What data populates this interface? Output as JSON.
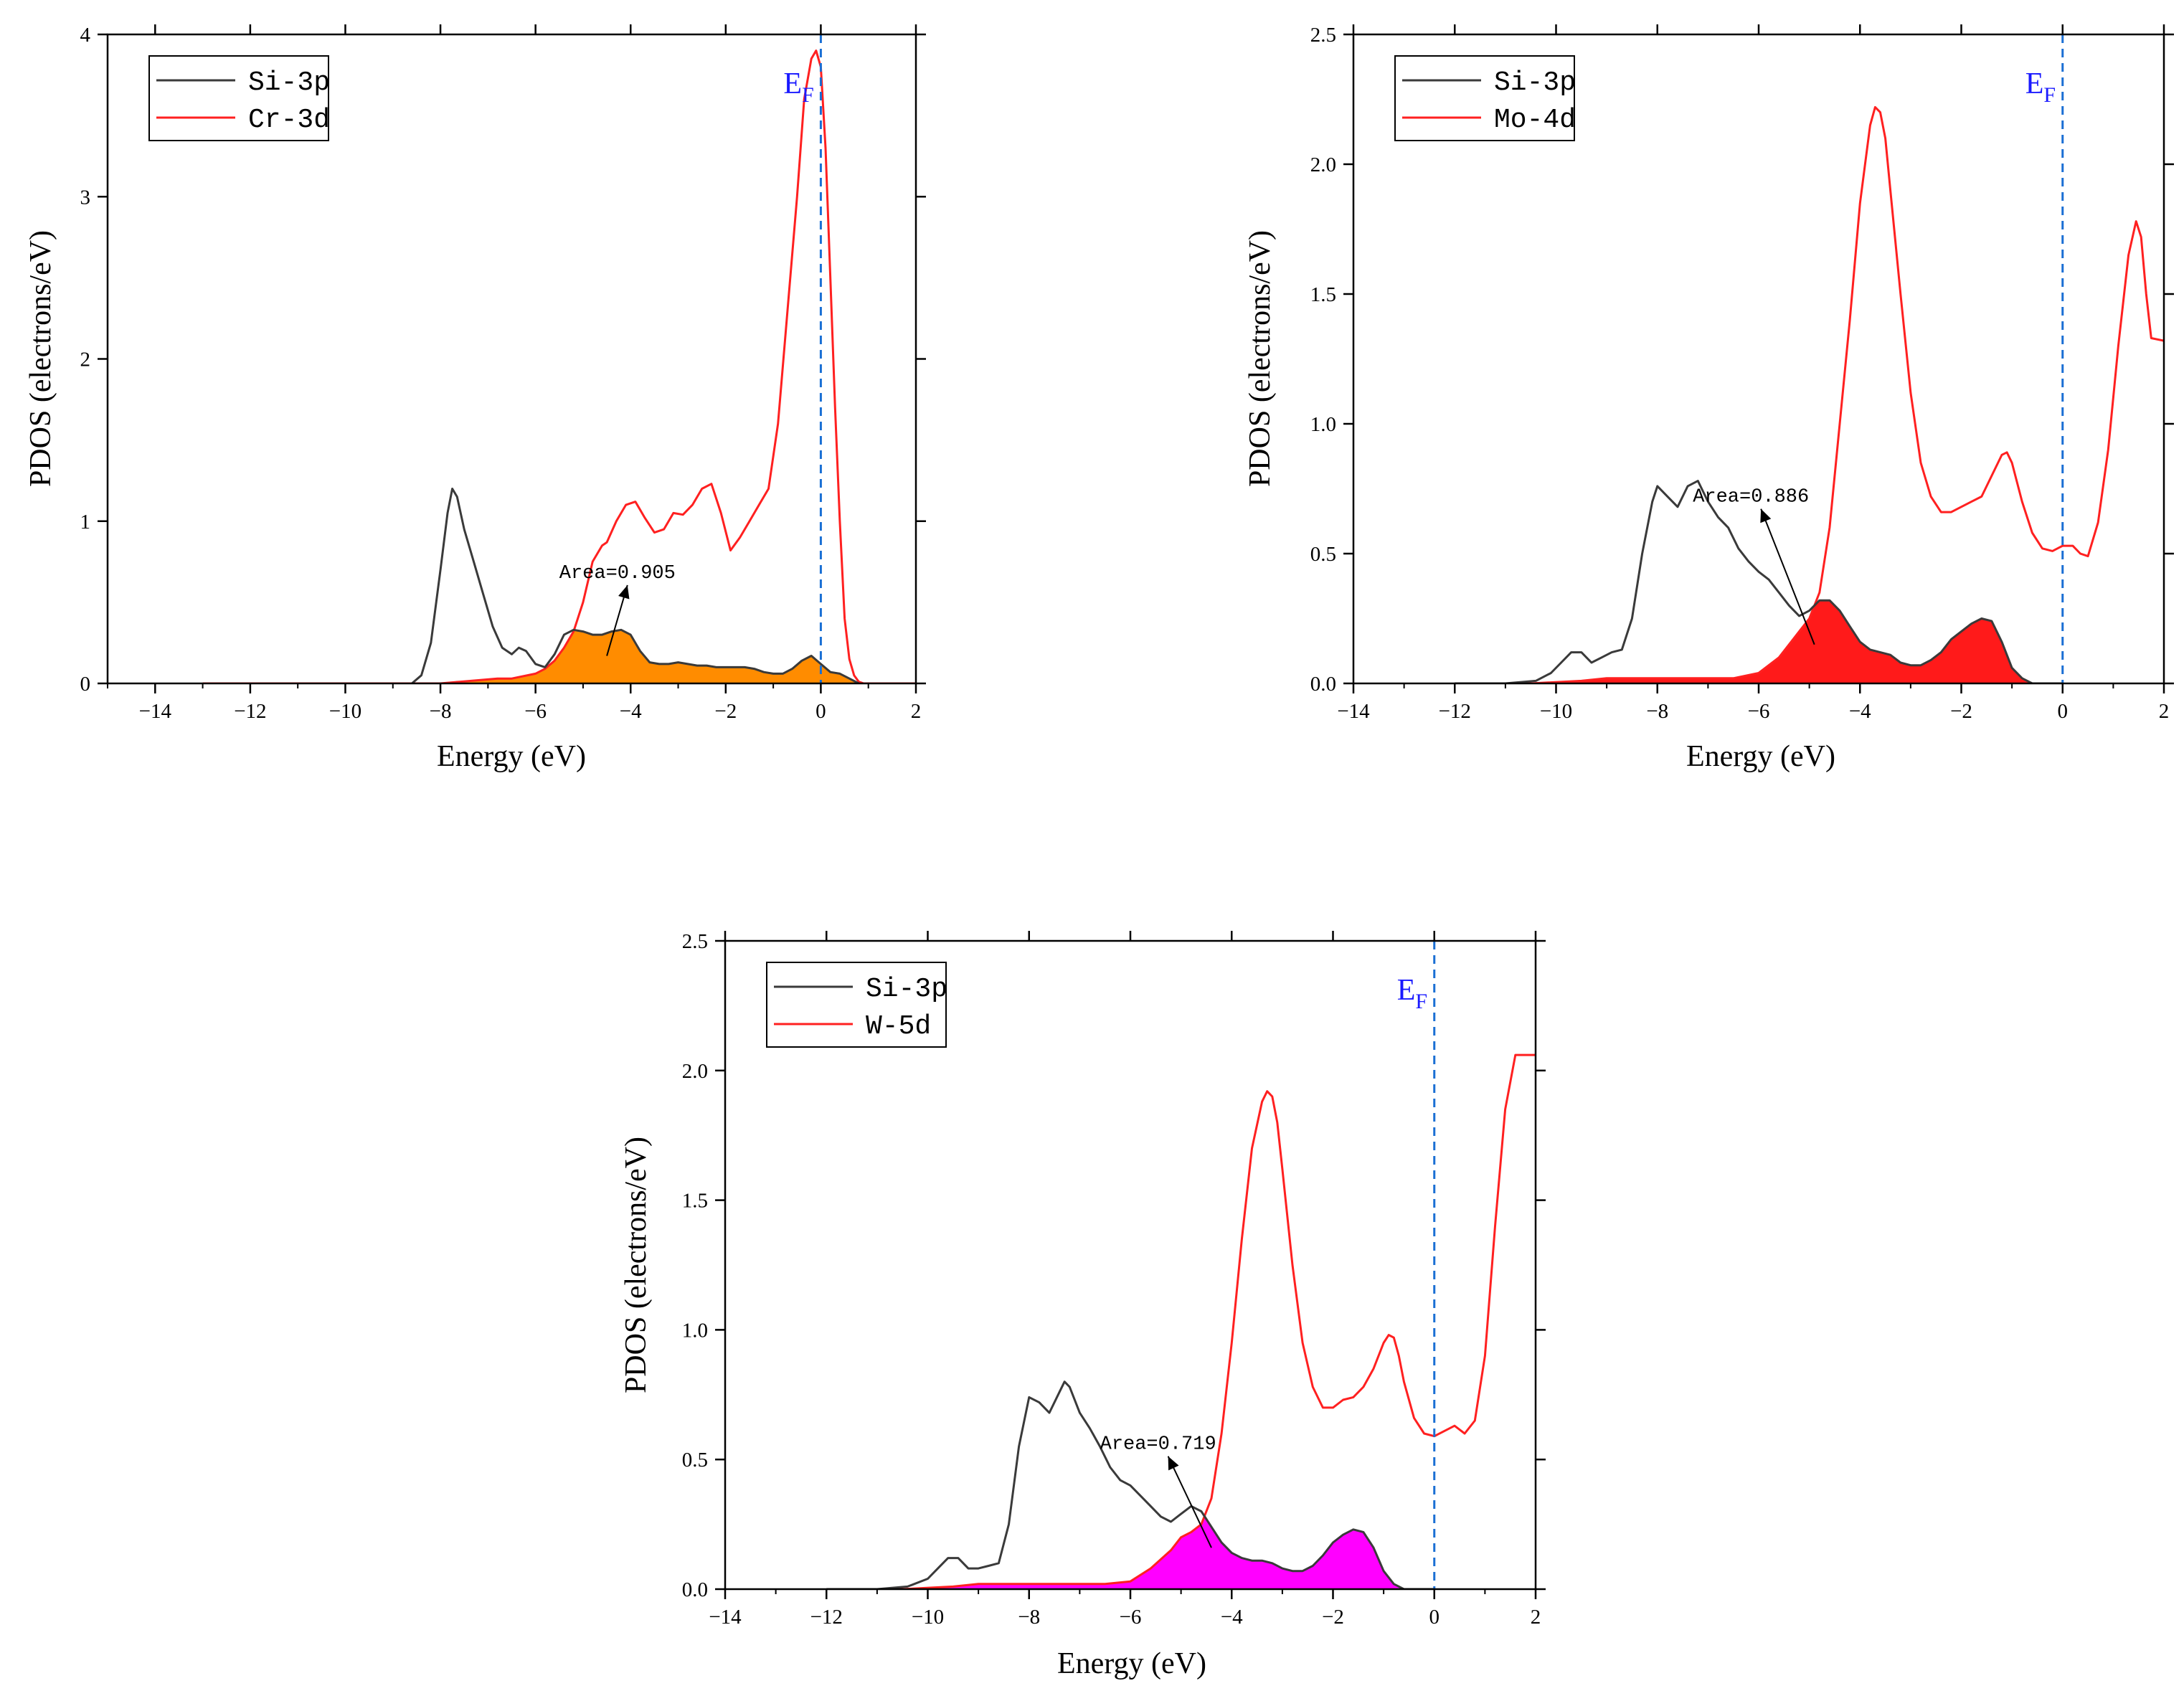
{
  "chart_data": [
    {
      "type": "line",
      "panel": "top-left",
      "xlabel": "Energy (eV)",
      "ylabel": "PDOS (electrons/eV)",
      "xlim": [
        -15,
        2
      ],
      "ylim": [
        0,
        4
      ],
      "xticks": [
        -14,
        -12,
        -10,
        -8,
        -6,
        -4,
        -2,
        0,
        2
      ],
      "yticks": [
        0,
        1,
        2,
        3,
        4
      ],
      "ytick_labels": [
        "0",
        "1",
        "2",
        "3",
        "4"
      ],
      "fermi_label_main": "E",
      "fermi_label_sub": "F",
      "fermi_level": 0,
      "legend_position": "top-left",
      "colors": {
        "si": "#3a3a3a",
        "metal": "#ff2020",
        "fill": "#ff8c00",
        "fermi": "#1a6fd4"
      },
      "annotation": "Area=0.905",
      "annotation_at": [
        -5.5,
        0.65
      ],
      "arrow_to": [
        -4.5,
        0.17
      ],
      "series": [
        {
          "name": "Si-3p",
          "x": [
            -8.6,
            -8.4,
            -8.2,
            -8.0,
            -7.85,
            -7.75,
            -7.65,
            -7.5,
            -7.3,
            -7.1,
            -6.9,
            -6.7,
            -6.5,
            -6.35,
            -6.2,
            -6.0,
            -5.8,
            -5.6,
            -5.4,
            -5.2,
            -5.0,
            -4.8,
            -4.6,
            -4.4,
            -4.2,
            -4.0,
            -3.8,
            -3.6,
            -3.4,
            -3.2,
            -3.0,
            -2.8,
            -2.6,
            -2.4,
            -2.2,
            -2.0,
            -1.8,
            -1.6,
            -1.4,
            -1.2,
            -1.0,
            -0.8,
            -0.6,
            -0.4,
            -0.2,
            0.0,
            0.2,
            0.4,
            0.6,
            0.8
          ],
          "y": [
            0.0,
            0.05,
            0.25,
            0.7,
            1.05,
            1.2,
            1.15,
            0.95,
            0.75,
            0.55,
            0.35,
            0.22,
            0.18,
            0.22,
            0.2,
            0.12,
            0.1,
            0.18,
            0.3,
            0.33,
            0.32,
            0.3,
            0.3,
            0.32,
            0.33,
            0.3,
            0.2,
            0.13,
            0.12,
            0.12,
            0.13,
            0.12,
            0.11,
            0.11,
            0.1,
            0.1,
            0.1,
            0.1,
            0.09,
            0.07,
            0.06,
            0.06,
            0.09,
            0.14,
            0.17,
            0.12,
            0.07,
            0.06,
            0.03,
            0.0
          ]
        },
        {
          "name": "Cr-3d",
          "x": [
            -13.0,
            -11.0,
            -9.0,
            -8.0,
            -7.6,
            -7.2,
            -6.8,
            -6.5,
            -6.0,
            -5.8,
            -5.6,
            -5.4,
            -5.2,
            -5.0,
            -4.8,
            -4.6,
            -4.5,
            -4.3,
            -4.1,
            -3.9,
            -3.7,
            -3.5,
            -3.3,
            -3.1,
            -2.9,
            -2.7,
            -2.5,
            -2.3,
            -2.1,
            -1.9,
            -1.7,
            -1.5,
            -1.3,
            -1.1,
            -0.9,
            -0.7,
            -0.5,
            -0.35,
            -0.2,
            -0.1,
            0.0,
            0.1,
            0.2,
            0.3,
            0.4,
            0.5,
            0.6,
            0.7,
            0.8,
            0.9,
            1.0,
            1.1,
            1.3,
            1.6,
            2.0
          ],
          "y": [
            0.0,
            0.0,
            0.0,
            0.0,
            0.01,
            0.02,
            0.03,
            0.03,
            0.06,
            0.09,
            0.14,
            0.22,
            0.32,
            0.5,
            0.75,
            0.85,
            0.87,
            1.0,
            1.1,
            1.12,
            1.02,
            0.93,
            0.95,
            1.05,
            1.04,
            1.1,
            1.2,
            1.23,
            1.05,
            0.82,
            0.9,
            1.0,
            1.1,
            1.2,
            1.6,
            2.3,
            3.0,
            3.6,
            3.85,
            3.9,
            3.8,
            3.3,
            2.5,
            1.7,
            1.0,
            0.4,
            0.15,
            0.05,
            0.01,
            0.0,
            0.0,
            0.0,
            0.0,
            0.0,
            0.0
          ]
        }
      ]
    },
    {
      "type": "line",
      "panel": "top-right",
      "xlabel": "Energy (eV)",
      "ylabel": "PDOS (electrons/eV)",
      "xlim": [
        -14,
        2
      ],
      "ylim": [
        0,
        2.5
      ],
      "xticks": [
        -14,
        -12,
        -10,
        -8,
        -6,
        -4,
        -2,
        0,
        2
      ],
      "yticks": [
        0,
        0.5,
        1.0,
        1.5,
        2.0,
        2.5
      ],
      "ytick_labels": [
        "0.0",
        "0.5",
        "1.0",
        "1.5",
        "2.0",
        "2.5"
      ],
      "fermi_label_main": "E",
      "fermi_label_sub": "F",
      "fermi_level": 0,
      "legend_position": "top-left",
      "colors": {
        "si": "#3a3a3a",
        "metal": "#ff2020",
        "fill": "#ff1a1a",
        "fermi": "#1a6fd4"
      },
      "annotation": "Area=0.886",
      "annotation_at": [
        -7.3,
        0.7
      ],
      "arrow_to": [
        -4.9,
        0.15
      ],
      "series": [
        {
          "name": "Si-3p",
          "x": [
            -12.0,
            -11.0,
            -10.4,
            -10.1,
            -9.9,
            -9.7,
            -9.5,
            -9.3,
            -9.1,
            -8.9,
            -8.7,
            -8.5,
            -8.3,
            -8.1,
            -8.0,
            -7.8,
            -7.6,
            -7.4,
            -7.2,
            -7.0,
            -6.8,
            -6.6,
            -6.4,
            -6.2,
            -6.0,
            -5.8,
            -5.6,
            -5.4,
            -5.2,
            -5.0,
            -4.8,
            -4.6,
            -4.4,
            -4.2,
            -4.0,
            -3.8,
            -3.6,
            -3.4,
            -3.2,
            -3.0,
            -2.8,
            -2.6,
            -2.4,
            -2.2,
            -2.0,
            -1.8,
            -1.6,
            -1.4,
            -1.2,
            -1.0,
            -0.8,
            -0.6,
            -0.4,
            -0.2,
            0.0
          ],
          "y": [
            0.0,
            0.0,
            0.01,
            0.04,
            0.08,
            0.12,
            0.12,
            0.08,
            0.1,
            0.12,
            0.13,
            0.25,
            0.5,
            0.7,
            0.76,
            0.72,
            0.68,
            0.76,
            0.78,
            0.7,
            0.64,
            0.6,
            0.52,
            0.47,
            0.43,
            0.4,
            0.35,
            0.3,
            0.26,
            0.28,
            0.32,
            0.32,
            0.28,
            0.22,
            0.16,
            0.13,
            0.12,
            0.11,
            0.08,
            0.07,
            0.07,
            0.09,
            0.12,
            0.17,
            0.2,
            0.23,
            0.25,
            0.24,
            0.16,
            0.06,
            0.02,
            0.0,
            0.0,
            0.0,
            0.0
          ]
        },
        {
          "name": "Mo-4d",
          "x": [
            -12.0,
            -10.5,
            -9.5,
            -9.0,
            -8.5,
            -8.0,
            -7.5,
            -7.0,
            -6.5,
            -6.0,
            -5.6,
            -5.2,
            -5.0,
            -4.8,
            -4.6,
            -4.4,
            -4.2,
            -4.0,
            -3.8,
            -3.7,
            -3.6,
            -3.5,
            -3.4,
            -3.2,
            -3.0,
            -2.8,
            -2.6,
            -2.4,
            -2.2,
            -2.0,
            -1.8,
            -1.6,
            -1.4,
            -1.2,
            -1.1,
            -1.0,
            -0.8,
            -0.6,
            -0.4,
            -0.2,
            0.0,
            0.2,
            0.35,
            0.5,
            0.7,
            0.9,
            1.1,
            1.3,
            1.45,
            1.55,
            1.65,
            1.75,
            2.0
          ],
          "y": [
            0.0,
            0.0,
            0.01,
            0.02,
            0.02,
            0.02,
            0.02,
            0.02,
            0.02,
            0.04,
            0.1,
            0.2,
            0.25,
            0.35,
            0.6,
            1.0,
            1.4,
            1.85,
            2.15,
            2.22,
            2.2,
            2.1,
            1.9,
            1.5,
            1.12,
            0.85,
            0.72,
            0.66,
            0.66,
            0.68,
            0.7,
            0.72,
            0.8,
            0.88,
            0.89,
            0.85,
            0.7,
            0.58,
            0.52,
            0.51,
            0.53,
            0.53,
            0.5,
            0.49,
            0.62,
            0.9,
            1.3,
            1.65,
            1.78,
            1.72,
            1.5,
            1.33,
            1.32
          ]
        }
      ]
    },
    {
      "type": "line",
      "panel": "bottom-center",
      "xlabel": "Energy (eV)",
      "ylabel": "PDOS (electrons/eV)",
      "xlim": [
        -14,
        2
      ],
      "ylim": [
        0,
        2.5
      ],
      "xticks": [
        -14,
        -12,
        -10,
        -8,
        -6,
        -4,
        -2,
        0,
        2
      ],
      "yticks": [
        0,
        0.5,
        1.0,
        1.5,
        2.0,
        2.5
      ],
      "ytick_labels": [
        "0.0",
        "0.5",
        "1.0",
        "1.5",
        "2.0",
        "2.5"
      ],
      "fermi_label_main": "E",
      "fermi_label_sub": "F",
      "fermi_level": 0,
      "legend_position": "top-left",
      "colors": {
        "si": "#3a3a3a",
        "metal": "#ff2020",
        "fill": "#ff00ff",
        "fermi": "#1a6fd4"
      },
      "annotation": "Area=0.719",
      "annotation_at": [
        -6.6,
        0.54
      ],
      "arrow_to": [
        -4.4,
        0.16
      ],
      "series": [
        {
          "name": "Si-3p",
          "x": [
            -12.0,
            -11.0,
            -10.4,
            -10.0,
            -9.8,
            -9.6,
            -9.4,
            -9.2,
            -9.0,
            -8.8,
            -8.6,
            -8.4,
            -8.2,
            -8.0,
            -7.8,
            -7.6,
            -7.4,
            -7.3,
            -7.2,
            -7.0,
            -6.8,
            -6.6,
            -6.4,
            -6.2,
            -6.0,
            -5.8,
            -5.6,
            -5.4,
            -5.2,
            -5.0,
            -4.8,
            -4.6,
            -4.4,
            -4.2,
            -4.0,
            -3.8,
            -3.6,
            -3.4,
            -3.2,
            -3.0,
            -2.8,
            -2.6,
            -2.4,
            -2.2,
            -2.0,
            -1.8,
            -1.6,
            -1.4,
            -1.2,
            -1.0,
            -0.8,
            -0.6,
            -0.4,
            -0.2,
            0.0
          ],
          "y": [
            0.0,
            0.0,
            0.01,
            0.04,
            0.08,
            0.12,
            0.12,
            0.08,
            0.08,
            0.09,
            0.1,
            0.25,
            0.55,
            0.74,
            0.72,
            0.68,
            0.76,
            0.8,
            0.78,
            0.68,
            0.62,
            0.55,
            0.47,
            0.42,
            0.4,
            0.36,
            0.32,
            0.28,
            0.26,
            0.29,
            0.32,
            0.3,
            0.24,
            0.18,
            0.14,
            0.12,
            0.11,
            0.11,
            0.1,
            0.08,
            0.07,
            0.07,
            0.09,
            0.13,
            0.18,
            0.21,
            0.23,
            0.22,
            0.16,
            0.07,
            0.02,
            0.0,
            0.0,
            0.0,
            0.0
          ]
        },
        {
          "name": "W-5d",
          "x": [
            -12.0,
            -10.5,
            -9.5,
            -9.0,
            -8.5,
            -8.0,
            -7.5,
            -7.0,
            -6.5,
            -6.0,
            -5.6,
            -5.2,
            -5.0,
            -4.8,
            -4.6,
            -4.4,
            -4.2,
            -4.0,
            -3.8,
            -3.6,
            -3.4,
            -3.3,
            -3.2,
            -3.1,
            -3.0,
            -2.8,
            -2.6,
            -2.4,
            -2.2,
            -2.0,
            -1.8,
            -1.6,
            -1.4,
            -1.2,
            -1.0,
            -0.9,
            -0.8,
            -0.7,
            -0.6,
            -0.4,
            -0.2,
            0.0,
            0.2,
            0.4,
            0.6,
            0.8,
            1.0,
            1.2,
            1.4,
            1.6,
            1.8,
            2.0
          ],
          "y": [
            0.0,
            0.0,
            0.01,
            0.02,
            0.02,
            0.02,
            0.02,
            0.02,
            0.02,
            0.03,
            0.08,
            0.15,
            0.2,
            0.22,
            0.25,
            0.35,
            0.6,
            0.95,
            1.35,
            1.7,
            1.88,
            1.92,
            1.9,
            1.8,
            1.62,
            1.25,
            0.95,
            0.78,
            0.7,
            0.7,
            0.73,
            0.74,
            0.78,
            0.85,
            0.95,
            0.98,
            0.97,
            0.9,
            0.8,
            0.66,
            0.6,
            0.59,
            0.61,
            0.63,
            0.6,
            0.65,
            0.9,
            1.4,
            1.85,
            2.06,
            2.06,
            2.06
          ]
        }
      ]
    }
  ]
}
